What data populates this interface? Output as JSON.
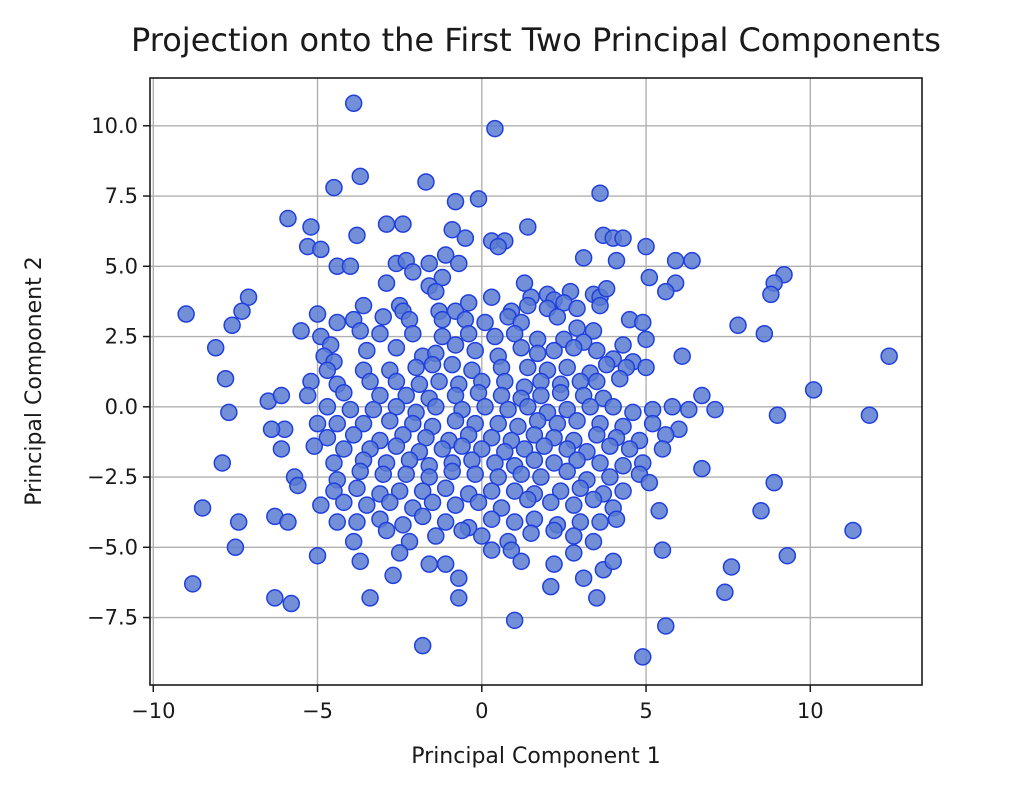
{
  "chart_data": {
    "type": "scatter",
    "title": "Projection onto the First Two Principal Components",
    "xlabel": "Principal Component 1",
    "ylabel": "Principal Component 2",
    "xlim": [
      -10.1,
      13.4
    ],
    "ylim": [
      -9.9,
      11.7
    ],
    "xticks": [
      -10,
      -5,
      0,
      5,
      10
    ],
    "xtick_labels": [
      "−10",
      "−5",
      "0",
      "5",
      "10"
    ],
    "yticks": [
      -7.5,
      -5.0,
      -2.5,
      0.0,
      2.5,
      5.0,
      7.5,
      10.0
    ],
    "ytick_labels": [
      "−7.5",
      "−5.0",
      "−2.5",
      "0.0",
      "2.5",
      "5.0",
      "7.5",
      "10.0"
    ],
    "grid": true,
    "marker_fill": "#5a7bd0",
    "marker_edge": "#1f3fe0",
    "points": [
      [
        -3.9,
        10.8
      ],
      [
        0.4,
        9.9
      ],
      [
        -3.7,
        8.2
      ],
      [
        -4.5,
        7.8
      ],
      [
        -1.7,
        8.0
      ],
      [
        3.6,
        7.6
      ],
      [
        -0.8,
        7.3
      ],
      [
        -0.1,
        7.4
      ],
      [
        -5.9,
        6.7
      ],
      [
        -5.2,
        6.4
      ],
      [
        -2.9,
        6.5
      ],
      [
        -2.4,
        6.5
      ],
      [
        1.4,
        6.4
      ],
      [
        -3.8,
        6.1
      ],
      [
        -0.9,
        6.3
      ],
      [
        -0.5,
        6.0
      ],
      [
        3.7,
        6.1
      ],
      [
        4.0,
        6.0
      ],
      [
        4.3,
        6.0
      ],
      [
        5.0,
        5.7
      ],
      [
        -5.3,
        5.7
      ],
      [
        -4.9,
        5.6
      ],
      [
        0.3,
        5.9
      ],
      [
        0.7,
        5.9
      ],
      [
        2.0,
        4.0
      ],
      [
        1.5,
        3.9
      ],
      [
        2.7,
        4.1
      ],
      [
        3.4,
        4.0
      ],
      [
        -2.6,
        5.1
      ],
      [
        -2.3,
        5.2
      ],
      [
        0.5,
        5.7
      ],
      [
        -1.1,
        5.4
      ],
      [
        -1.6,
        5.1
      ],
      [
        -0.7,
        5.1
      ],
      [
        3.1,
        5.3
      ],
      [
        4.1,
        5.2
      ],
      [
        5.9,
        5.2
      ],
      [
        6.4,
        5.2
      ],
      [
        -4.4,
        5.0
      ],
      [
        -4.0,
        5.0
      ],
      [
        -2.1,
        4.8
      ],
      [
        -1.2,
        4.6
      ],
      [
        -2.9,
        4.4
      ],
      [
        1.3,
        4.4
      ],
      [
        5.1,
        4.6
      ],
      [
        5.9,
        4.4
      ],
      [
        5.6,
        4.1
      ],
      [
        -1.6,
        4.3
      ],
      [
        -1.4,
        4.1
      ],
      [
        0.3,
        3.9
      ],
      [
        2.2,
        3.8
      ],
      [
        3.6,
        3.9
      ],
      [
        3.8,
        4.2
      ],
      [
        9.2,
        4.7
      ],
      [
        8.9,
        4.4
      ],
      [
        8.8,
        4.0
      ],
      [
        -3.6,
        3.6
      ],
      [
        -2.5,
        3.6
      ],
      [
        -2.4,
        3.4
      ],
      [
        -1.3,
        3.4
      ],
      [
        -0.8,
        3.4
      ],
      [
        -0.4,
        3.7
      ],
      [
        0.9,
        3.4
      ],
      [
        1.4,
        3.6
      ],
      [
        2.0,
        3.5
      ],
      [
        2.5,
        3.7
      ],
      [
        2.9,
        3.5
      ],
      [
        3.6,
        3.6
      ],
      [
        4.5,
        3.1
      ],
      [
        4.9,
        3.0
      ],
      [
        -9.0,
        3.3
      ],
      [
        -7.1,
        3.9
      ],
      [
        -7.3,
        3.4
      ],
      [
        -7.6,
        2.9
      ],
      [
        -5.0,
        3.3
      ],
      [
        -4.4,
        3.0
      ],
      [
        -3.9,
        3.1
      ],
      [
        -3.0,
        3.2
      ],
      [
        -2.2,
        3.1
      ],
      [
        -1.2,
        3.1
      ],
      [
        -0.5,
        3.1
      ],
      [
        0.1,
        3.0
      ],
      [
        0.8,
        3.2
      ],
      [
        1.2,
        3.0
      ],
      [
        2.3,
        3.2
      ],
      [
        2.9,
        2.8
      ],
      [
        3.4,
        2.7
      ],
      [
        5.0,
        2.4
      ],
      [
        7.8,
        2.9
      ],
      [
        8.6,
        2.6
      ],
      [
        -5.5,
        2.7
      ],
      [
        -4.9,
        2.5
      ],
      [
        -4.6,
        2.2
      ],
      [
        -3.7,
        2.7
      ],
      [
        -3.1,
        2.6
      ],
      [
        -2.1,
        2.6
      ],
      [
        -1.2,
        2.5
      ],
      [
        -0.4,
        2.6
      ],
      [
        0.4,
        2.5
      ],
      [
        1.0,
        2.6
      ],
      [
        1.7,
        2.4
      ],
      [
        2.5,
        2.4
      ],
      [
        3.1,
        2.3
      ],
      [
        4.3,
        2.2
      ],
      [
        -8.1,
        2.1
      ],
      [
        -4.8,
        1.8
      ],
      [
        -4.5,
        1.6
      ],
      [
        -3.5,
        2.0
      ],
      [
        -2.6,
        2.1
      ],
      [
        -1.8,
        1.8
      ],
      [
        -1.4,
        1.9
      ],
      [
        -0.8,
        2.2
      ],
      [
        -0.2,
        2.0
      ],
      [
        0.5,
        1.8
      ],
      [
        1.2,
        2.1
      ],
      [
        1.7,
        1.9
      ],
      [
        2.2,
        2.0
      ],
      [
        2.8,
        2.1
      ],
      [
        3.5,
        2.0
      ],
      [
        4.0,
        1.7
      ],
      [
        4.6,
        1.6
      ],
      [
        6.1,
        1.8
      ],
      [
        12.4,
        1.8
      ],
      [
        -4.7,
        1.3
      ],
      [
        -3.6,
        1.3
      ],
      [
        -2.8,
        1.3
      ],
      [
        -2.0,
        1.4
      ],
      [
        -1.5,
        1.5
      ],
      [
        -0.9,
        1.5
      ],
      [
        -0.3,
        1.3
      ],
      [
        0.6,
        1.4
      ],
      [
        1.4,
        1.4
      ],
      [
        2.0,
        1.3
      ],
      [
        2.6,
        1.4
      ],
      [
        3.3,
        1.2
      ],
      [
        3.8,
        1.5
      ],
      [
        4.4,
        1.4
      ],
      [
        5.0,
        1.4
      ],
      [
        -7.8,
        1.0
      ],
      [
        -5.2,
        0.9
      ],
      [
        -4.4,
        0.8
      ],
      [
        -3.4,
        0.9
      ],
      [
        -2.6,
        0.9
      ],
      [
        -1.9,
        0.8
      ],
      [
        -1.3,
        0.9
      ],
      [
        -0.7,
        0.8
      ],
      [
        0.0,
        0.9
      ],
      [
        0.7,
        0.9
      ],
      [
        1.3,
        0.7
      ],
      [
        1.8,
        0.9
      ],
      [
        2.4,
        0.8
      ],
      [
        3.0,
        0.9
      ],
      [
        3.5,
        0.9
      ],
      [
        4.2,
        1.0
      ],
      [
        -6.5,
        0.2
      ],
      [
        -6.1,
        0.4
      ],
      [
        -5.3,
        0.4
      ],
      [
        -4.2,
        0.5
      ],
      [
        -3.1,
        0.4
      ],
      [
        -2.3,
        0.4
      ],
      [
        -1.6,
        0.3
      ],
      [
        -0.8,
        0.4
      ],
      [
        -0.1,
        0.5
      ],
      [
        0.6,
        0.4
      ],
      [
        1.2,
        0.3
      ],
      [
        1.8,
        0.4
      ],
      [
        2.4,
        0.5
      ],
      [
        3.1,
        0.4
      ],
      [
        3.7,
        0.3
      ],
      [
        6.7,
        0.4
      ],
      [
        10.1,
        0.6
      ],
      [
        -7.7,
        -0.2
      ],
      [
        -4.7,
        0.0
      ],
      [
        -4.0,
        -0.1
      ],
      [
        -3.3,
        -0.1
      ],
      [
        -2.6,
        0.0
      ],
      [
        -2.0,
        -0.2
      ],
      [
        -1.4,
        0.0
      ],
      [
        -0.6,
        -0.1
      ],
      [
        0.1,
        0.0
      ],
      [
        0.8,
        -0.1
      ],
      [
        1.4,
        0.0
      ],
      [
        2.0,
        -0.2
      ],
      [
        2.6,
        -0.1
      ],
      [
        3.3,
        0.0
      ],
      [
        4.0,
        0.0
      ],
      [
        4.6,
        -0.2
      ],
      [
        5.2,
        -0.1
      ],
      [
        5.8,
        0.0
      ],
      [
        6.3,
        -0.1
      ],
      [
        7.1,
        -0.1
      ],
      [
        9.0,
        -0.3
      ],
      [
        11.8,
        -0.3
      ],
      [
        -6.0,
        -0.8
      ],
      [
        -6.4,
        -0.8
      ],
      [
        -5.0,
        -0.6
      ],
      [
        -4.4,
        -0.6
      ],
      [
        -3.6,
        -0.6
      ],
      [
        -2.8,
        -0.5
      ],
      [
        -2.1,
        -0.6
      ],
      [
        -1.5,
        -0.7
      ],
      [
        -0.8,
        -0.5
      ],
      [
        -0.2,
        -0.6
      ],
      [
        0.5,
        -0.6
      ],
      [
        1.1,
        -0.7
      ],
      [
        1.7,
        -0.5
      ],
      [
        2.3,
        -0.6
      ],
      [
        2.9,
        -0.5
      ],
      [
        3.6,
        -0.6
      ],
      [
        4.3,
        -0.7
      ],
      [
        5.2,
        -0.6
      ],
      [
        6.0,
        -0.8
      ],
      [
        -4.7,
        -1.1
      ],
      [
        -3.9,
        -1.0
      ],
      [
        -3.1,
        -1.2
      ],
      [
        -2.4,
        -1.0
      ],
      [
        -1.7,
        -1.1
      ],
      [
        -1.0,
        -1.2
      ],
      [
        -0.4,
        -1.0
      ],
      [
        0.3,
        -1.1
      ],
      [
        0.9,
        -1.2
      ],
      [
        1.6,
        -1.0
      ],
      [
        2.2,
        -1.1
      ],
      [
        2.8,
        -1.2
      ],
      [
        3.5,
        -1.0
      ],
      [
        4.1,
        -1.1
      ],
      [
        4.8,
        -1.2
      ],
      [
        5.6,
        -1.0
      ],
      [
        -6.1,
        -1.5
      ],
      [
        -5.1,
        -1.4
      ],
      [
        -4.2,
        -1.5
      ],
      [
        -3.4,
        -1.5
      ],
      [
        -2.6,
        -1.4
      ],
      [
        -1.9,
        -1.6
      ],
      [
        -1.2,
        -1.5
      ],
      [
        -0.6,
        -1.4
      ],
      [
        0.0,
        -1.5
      ],
      [
        0.7,
        -1.6
      ],
      [
        1.3,
        -1.5
      ],
      [
        1.9,
        -1.4
      ],
      [
        2.6,
        -1.5
      ],
      [
        3.2,
        -1.6
      ],
      [
        3.9,
        -1.4
      ],
      [
        4.5,
        -1.5
      ],
      [
        5.5,
        -1.5
      ],
      [
        -7.9,
        -2.0
      ],
      [
        -5.7,
        -2.5
      ],
      [
        -4.5,
        -2.0
      ],
      [
        -3.6,
        -1.9
      ],
      [
        -2.9,
        -2.0
      ],
      [
        -2.2,
        -1.9
      ],
      [
        -1.6,
        -2.1
      ],
      [
        -0.9,
        -2.0
      ],
      [
        -0.3,
        -1.9
      ],
      [
        0.4,
        -2.0
      ],
      [
        1.0,
        -2.1
      ],
      [
        1.6,
        -1.9
      ],
      [
        2.2,
        -2.0
      ],
      [
        2.9,
        -1.9
      ],
      [
        3.6,
        -2.0
      ],
      [
        4.3,
        -2.1
      ],
      [
        4.9,
        -2.0
      ],
      [
        6.7,
        -2.2
      ],
      [
        -5.6,
        -2.8
      ],
      [
        -4.4,
        -2.6
      ],
      [
        -3.7,
        -2.3
      ],
      [
        -3.0,
        -2.4
      ],
      [
        -2.3,
        -2.4
      ],
      [
        -1.6,
        -2.5
      ],
      [
        -0.9,
        -2.3
      ],
      [
        -0.2,
        -2.4
      ],
      [
        0.5,
        -2.5
      ],
      [
        1.2,
        -2.4
      ],
      [
        1.8,
        -2.5
      ],
      [
        2.6,
        -2.3
      ],
      [
        3.2,
        -2.6
      ],
      [
        3.9,
        -2.5
      ],
      [
        4.8,
        -2.4
      ],
      [
        5.1,
        -2.7
      ],
      [
        8.9,
        -2.7
      ],
      [
        -4.5,
        -3.0
      ],
      [
        -3.8,
        -2.9
      ],
      [
        -3.1,
        -3.1
      ],
      [
        -2.5,
        -3.0
      ],
      [
        -1.8,
        -3.0
      ],
      [
        -1.1,
        -2.9
      ],
      [
        -0.4,
        -3.1
      ],
      [
        0.3,
        -3.0
      ],
      [
        1.0,
        -3.0
      ],
      [
        1.6,
        -3.1
      ],
      [
        2.4,
        -3.0
      ],
      [
        3.0,
        -2.9
      ],
      [
        3.7,
        -3.1
      ],
      [
        4.3,
        -3.0
      ],
      [
        -8.5,
        -3.6
      ],
      [
        -4.9,
        -3.5
      ],
      [
        -4.2,
        -3.4
      ],
      [
        -3.5,
        -3.5
      ],
      [
        -2.8,
        -3.4
      ],
      [
        -2.1,
        -3.6
      ],
      [
        -1.5,
        -3.4
      ],
      [
        -0.8,
        -3.5
      ],
      [
        -0.1,
        -3.4
      ],
      [
        0.6,
        -3.6
      ],
      [
        1.4,
        -3.3
      ],
      [
        2.1,
        -3.4
      ],
      [
        2.8,
        -3.5
      ],
      [
        3.4,
        -3.3
      ],
      [
        4.0,
        -3.6
      ],
      [
        8.5,
        -3.7
      ],
      [
        -7.4,
        -4.1
      ],
      [
        -6.3,
        -3.9
      ],
      [
        -5.9,
        -4.1
      ],
      [
        -4.4,
        -4.1
      ],
      [
        -3.8,
        -4.1
      ],
      [
        -3.1,
        -4.0
      ],
      [
        -2.4,
        -4.2
      ],
      [
        -1.8,
        -3.9
      ],
      [
        -1.1,
        -4.1
      ],
      [
        -0.4,
        -4.3
      ],
      [
        0.3,
        -4.0
      ],
      [
        1.0,
        -4.1
      ],
      [
        1.6,
        -4.0
      ],
      [
        2.3,
        -4.2
      ],
      [
        3.0,
        -4.1
      ],
      [
        3.6,
        -4.1
      ],
      [
        4.1,
        -4.0
      ],
      [
        5.4,
        -3.7
      ],
      [
        11.3,
        -4.4
      ],
      [
        -7.5,
        -5.0
      ],
      [
        -5.0,
        -5.3
      ],
      [
        -3.9,
        -4.8
      ],
      [
        -2.9,
        -4.4
      ],
      [
        -2.2,
        -4.8
      ],
      [
        -1.4,
        -4.6
      ],
      [
        -0.6,
        -4.4
      ],
      [
        0.0,
        -4.6
      ],
      [
        0.8,
        -4.8
      ],
      [
        1.5,
        -4.5
      ],
      [
        2.2,
        -4.4
      ],
      [
        2.8,
        -4.6
      ],
      [
        3.4,
        -4.8
      ],
      [
        -3.7,
        -5.5
      ],
      [
        -2.5,
        -5.2
      ],
      [
        -1.6,
        -5.6
      ],
      [
        -1.1,
        -5.6
      ],
      [
        0.3,
        -5.1
      ],
      [
        0.9,
        -5.1
      ],
      [
        1.2,
        -5.5
      ],
      [
        2.2,
        -5.6
      ],
      [
        2.8,
        -5.2
      ],
      [
        3.7,
        -5.8
      ],
      [
        4.0,
        -5.5
      ],
      [
        5.5,
        -5.1
      ],
      [
        7.6,
        -5.7
      ],
      [
        9.3,
        -5.3
      ],
      [
        -8.8,
        -6.3
      ],
      [
        -6.3,
        -6.8
      ],
      [
        -5.8,
        -7.0
      ],
      [
        -3.4,
        -6.8
      ],
      [
        -2.7,
        -6.0
      ],
      [
        -0.7,
        -6.1
      ],
      [
        -0.7,
        -6.8
      ],
      [
        2.1,
        -6.4
      ],
      [
        3.1,
        -6.1
      ],
      [
        3.5,
        -6.8
      ],
      [
        7.4,
        -6.6
      ],
      [
        1.0,
        -7.6
      ],
      [
        5.6,
        -7.8
      ],
      [
        -1.8,
        -8.5
      ],
      [
        4.9,
        -8.9
      ]
    ]
  }
}
